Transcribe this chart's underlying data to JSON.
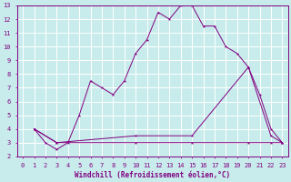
{
  "xlabel": "Windchill (Refroidissement éolien,°C)",
  "bg_color": "#c8ecec",
  "line_color": "#800080",
  "grid_color": "#ffffff",
  "xlim": [
    -0.5,
    23.5
  ],
  "ylim": [
    2,
    13
  ],
  "yticks": [
    2,
    3,
    4,
    5,
    6,
    7,
    8,
    9,
    10,
    11,
    12,
    13
  ],
  "xticks": [
    0,
    1,
    2,
    3,
    4,
    5,
    6,
    7,
    8,
    9,
    10,
    11,
    12,
    13,
    14,
    15,
    16,
    17,
    18,
    19,
    20,
    21,
    22,
    23
  ],
  "line1_x": [
    1,
    2,
    3,
    4,
    5,
    6,
    7,
    8,
    9,
    10,
    11,
    12,
    13,
    14,
    15,
    16,
    17,
    18,
    19,
    20,
    21,
    22,
    23
  ],
  "line1_y": [
    4.0,
    3.0,
    2.5,
    3.0,
    5.0,
    7.5,
    7.0,
    6.5,
    7.5,
    9.5,
    10.5,
    12.5,
    12.0,
    13.0,
    13.0,
    11.5,
    11.5,
    10.0,
    9.5,
    8.5,
    6.5,
    4.0,
    3.0
  ],
  "line2_x": [
    1,
    3,
    10,
    15,
    20,
    22,
    23
  ],
  "line2_y": [
    4.0,
    3.0,
    3.5,
    3.5,
    8.5,
    3.5,
    3.0
  ],
  "line3_x": [
    1,
    3,
    10,
    15,
    20,
    22,
    23
  ],
  "line3_y": [
    4.0,
    3.0,
    3.0,
    3.0,
    3.0,
    3.0,
    3.0
  ],
  "tick_fontsize": 5.0,
  "xlabel_fontsize": 5.5
}
